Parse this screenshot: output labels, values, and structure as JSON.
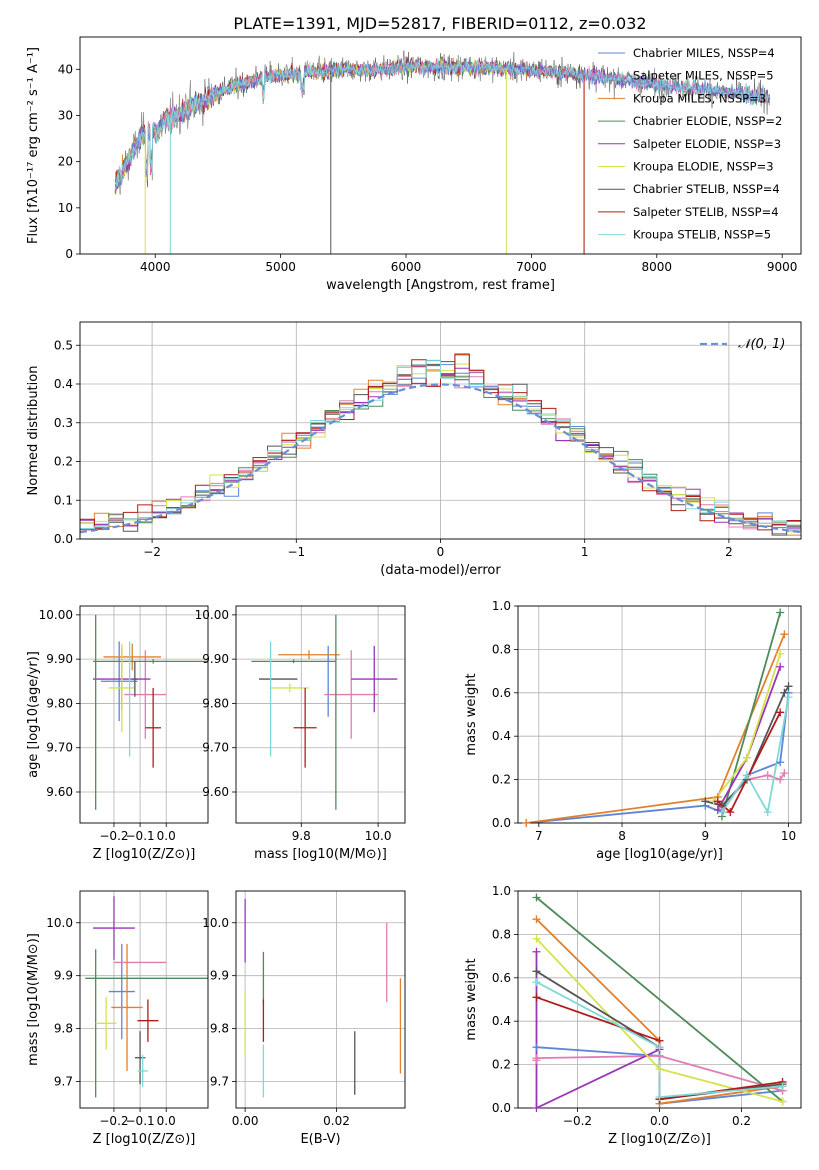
{
  "figure_title": "PLATE=1391, MJD=52817, FIBERID=0112, z=0.032",
  "colors": {
    "Chabrier MILES": "#5f84d8",
    "Salpeter MILES": "#e27cb4",
    "Kroupa MILES": "#e2812d",
    "Chabrier ELODIE": "#4e8b5a",
    "Salpeter ELODIE": "#9a35b8",
    "Kroupa ELODIE": "#d6e24e",
    "Chabrier STELIB": "#555555",
    "Salpeter STELIB": "#b01c1c",
    "Kroupa STELIB": "#7fd8d8",
    "normal": "#6a8fd8"
  },
  "chart_data": [
    {
      "id": "spectrum",
      "type": "line",
      "xlabel": "wavelength [Angstrom, rest frame]",
      "ylabel": "Flux [fλ10⁻¹⁷ erg cm⁻² s⁻¹ A⁻¹]",
      "xlim": [
        3400,
        9150
      ],
      "ylim": [
        0,
        47
      ],
      "xticks": [
        4000,
        5000,
        6000,
        7000,
        8000,
        9000
      ],
      "yticks": [
        0,
        10,
        20,
        30,
        40
      ],
      "grid": false,
      "legend_position": "top-right",
      "legend": [
        "Chabrier MILES, NSSP=4",
        "Salpeter MILES, NSSP=5",
        "Kroupa MILES, NSSP=3",
        "Chabrier ELODIE, NSSP=2",
        "Salpeter ELODIE, NSSP=3",
        "Kroupa ELODIE, NSSP=3",
        "Chabrier STELIB, NSSP=4",
        "Salpeter STELIB, NSSP=4",
        "Kroupa STELIB, NSSP=5"
      ],
      "continuum": {
        "x": [
          3680,
          3800,
          3900,
          4000,
          4100,
          4200,
          4300,
          4500,
          4700,
          4900,
          5100,
          5300,
          5500,
          5800,
          6000,
          6300,
          6600,
          6900,
          7200,
          7500,
          7800,
          8100,
          8400,
          8700,
          8900
        ],
        "y": [
          15,
          21,
          26,
          27,
          29,
          31,
          32,
          35,
          37,
          38.5,
          39,
          39.5,
          40,
          40,
          40.5,
          40.5,
          40.5,
          40,
          39.5,
          38.5,
          37.5,
          36.5,
          35.5,
          34.5,
          34
        ]
      },
      "dropouts": [
        {
          "series": "Kroupa MILES",
          "x": 7420
        },
        {
          "series": "Salpeter STELIB",
          "x": 7420
        },
        {
          "series": "Kroupa ELODIE",
          "x": 6800
        },
        {
          "series": "Kroupa ELODIE",
          "x": 3920
        },
        {
          "series": "Chabrier STELIB",
          "x": 5400
        },
        {
          "series": "Kroupa STELIB",
          "x": 4120
        }
      ]
    },
    {
      "id": "residuals",
      "type": "histogram",
      "xlabel": "(data-model)/error",
      "ylabel": "Normed distribution",
      "xlim": [
        -2.5,
        2.5
      ],
      "ylim": [
        0,
        0.56
      ],
      "xticks": [
        -2,
        -1,
        0,
        1,
        2
      ],
      "yticks": [
        0.0,
        0.1,
        0.2,
        0.3,
        0.4,
        0.5
      ],
      "grid": true,
      "legend_position": "top-right",
      "normal_label": "𝒩(0, 1)",
      "bin_width": 0.1
    },
    {
      "id": "age_vs_z",
      "type": "errorbar",
      "xlabel": "Z [log10(Z/Z⊙)]",
      "ylabel": "age  [log10(age/yr)]",
      "xlim": [
        -0.33,
        0.16
      ],
      "ylim": [
        9.53,
        10.02
      ],
      "xticks": [
        -0.2,
        -0.1,
        0.0
      ],
      "yticks": [
        9.6,
        9.7,
        9.8,
        9.9,
        10.0
      ],
      "grid": true,
      "points": [
        {
          "series": "Chabrier MILES",
          "x": -0.18,
          "xerr": 0.07,
          "y": 9.85,
          "yerr": 0.09
        },
        {
          "series": "Salpeter MILES",
          "x": -0.08,
          "xerr": 0.08,
          "y": 9.82,
          "yerr": 0.1
        },
        {
          "series": "Kroupa MILES",
          "x": -0.13,
          "xerr": 0.11,
          "y": 9.905,
          "yerr": 0.03
        },
        {
          "series": "Chabrier ELODIE",
          "x": -0.05,
          "xerr": 0.23,
          "y": 9.895,
          "yerr": 0.005
        },
        {
          "series": "Salpeter ELODIE",
          "x": -0.17,
          "xerr": 0.11,
          "y": 9.855,
          "yerr": 0.07
        },
        {
          "series": "Kroupa ELODIE",
          "x": -0.17,
          "xerr": 0.05,
          "y": 9.835,
          "yerr": 0.1
        },
        {
          "series": "Chabrier STELIB",
          "x": -0.12,
          "xerr": 0.01,
          "y": 9.855,
          "yerr": 0.04
        },
        {
          "series": "Salpeter STELIB",
          "x": -0.05,
          "xerr": 0.03,
          "y": 9.745,
          "yerr": 0.09
        },
        {
          "series": "Kroupa STELIB",
          "x": -0.14,
          "xerr": 0.0,
          "y": 9.81,
          "yerr": 0.13
        },
        {
          "series": "Chabrier ELODIE",
          "x": -0.27,
          "xerr": 0.0,
          "y": 9.78,
          "yerr": 0.22
        }
      ]
    },
    {
      "id": "age_vs_mass",
      "type": "errorbar",
      "xlabel": "mass [log10(M/M⊙)]",
      "ylabel": "",
      "xlim": [
        9.63,
        10.07
      ],
      "ylim": [
        9.53,
        10.02
      ],
      "xticks": [
        9.8,
        10.0
      ],
      "yticks": [
        9.6,
        9.7,
        9.8,
        9.9,
        10.0
      ],
      "grid": true,
      "points": [
        {
          "series": "Chabrier MILES",
          "x": 9.87,
          "xerr": 0.0,
          "y": 9.85,
          "yerr": 0.08
        },
        {
          "series": "Salpeter MILES",
          "x": 9.93,
          "xerr": 0.07,
          "y": 9.82,
          "yerr": 0.1
        },
        {
          "series": "Kroupa MILES",
          "x": 9.82,
          "xerr": 0.08,
          "y": 9.91,
          "yerr": 0.01
        },
        {
          "series": "Chabrier ELODIE",
          "x": 9.78,
          "xerr": 0.11,
          "y": 9.895,
          "yerr": 0.004
        },
        {
          "series": "Chabrier ELODIE",
          "x": 9.89,
          "xerr": 0.0,
          "y": 9.78,
          "yerr": 0.22
        },
        {
          "series": "Salpeter ELODIE",
          "x": 9.99,
          "xerr": 0.06,
          "y": 9.855,
          "yerr": 0.075
        },
        {
          "series": "Kroupa ELODIE",
          "x": 9.77,
          "xerr": 0.05,
          "y": 9.835,
          "yerr": 0.01
        },
        {
          "series": "Chabrier STELIB",
          "x": 9.74,
          "xerr": 0.05,
          "y": 9.855,
          "yerr": 0.0
        },
        {
          "series": "Salpeter STELIB",
          "x": 9.81,
          "xerr": 0.03,
          "y": 9.745,
          "yerr": 0.09
        },
        {
          "series": "Kroupa STELIB",
          "x": 9.72,
          "xerr": 0.0,
          "y": 9.81,
          "yerr": 0.13
        }
      ]
    },
    {
      "id": "mass_weight_vs_age",
      "type": "line",
      "xlabel": "age  [log10(age/yr)]",
      "ylabel": "mass weight",
      "xlim": [
        6.75,
        10.15
      ],
      "ylim": [
        0,
        1.0
      ],
      "xticks": [
        7,
        8,
        9,
        10
      ],
      "yticks": [
        0.0,
        0.2,
        0.4,
        0.6,
        0.8,
        1.0
      ],
      "grid": true,
      "series": [
        {
          "name": "Chabrier MILES",
          "x": [
            6.85,
            9.0,
            9.2,
            9.5,
            9.9,
            10.0
          ],
          "y": [
            0.0,
            0.08,
            0.05,
            0.22,
            0.28,
            0.6
          ]
        },
        {
          "name": "Salpeter MILES",
          "x": [
            9.1,
            9.2,
            9.5,
            9.75,
            9.9,
            9.95
          ],
          "y": [
            0.1,
            0.07,
            0.2,
            0.22,
            0.2,
            0.23
          ]
        },
        {
          "name": "Kroupa MILES",
          "x": [
            6.85,
            9.15,
            9.95
          ],
          "y": [
            0.0,
            0.12,
            0.87
          ]
        },
        {
          "name": "Chabrier ELODIE",
          "x": [
            9.2,
            9.9
          ],
          "y": [
            0.03,
            0.97
          ]
        },
        {
          "name": "Salpeter ELODIE",
          "x": [
            9.15,
            9.5,
            9.9
          ],
          "y": [
            0.06,
            0.3,
            0.72
          ]
        },
        {
          "name": "Kroupa ELODIE",
          "x": [
            9.1,
            9.5,
            9.9
          ],
          "y": [
            0.1,
            0.3,
            0.78
          ]
        },
        {
          "name": "Chabrier STELIB",
          "x": [
            9.0,
            9.2,
            9.5,
            9.95,
            10.0
          ],
          "y": [
            0.1,
            0.08,
            0.2,
            0.6,
            0.63
          ]
        },
        {
          "name": "Salpeter STELIB",
          "x": [
            9.15,
            9.3,
            9.9
          ],
          "y": [
            0.1,
            0.05,
            0.51
          ]
        },
        {
          "name": "Kroupa STELIB",
          "x": [
            9.2,
            9.5,
            9.75,
            10.0
          ],
          "y": [
            0.05,
            0.22,
            0.05,
            0.58
          ]
        }
      ]
    },
    {
      "id": "mass_vs_z",
      "type": "errorbar",
      "xlabel": "Z [log10(Z/Z⊙)]",
      "ylabel": "mass [log10(M/M⊙)]",
      "xlim": [
        -0.33,
        0.16
      ],
      "ylim": [
        9.65,
        10.06
      ],
      "xticks": [
        -0.2,
        -0.1,
        0.0
      ],
      "yticks": [
        9.7,
        9.8,
        9.9,
        10.0
      ],
      "grid": true,
      "points": [
        {
          "series": "Chabrier MILES",
          "x": -0.17,
          "xerr": 0.05,
          "y": 9.87,
          "yerr": 0.09
        },
        {
          "series": "Salpeter MILES",
          "x": -0.1,
          "xerr": 0.1,
          "y": 9.925,
          "yerr": 0.0
        },
        {
          "series": "Kroupa MILES",
          "x": -0.15,
          "xerr": 0.06,
          "y": 9.84,
          "yerr": 0.12
        },
        {
          "series": "Chabrier ELODIE",
          "x": -0.07,
          "xerr": 0.24,
          "y": 9.895,
          "yerr": 0.0
        },
        {
          "series": "Chabrier ELODIE",
          "x": -0.27,
          "xerr": 0.0,
          "y": 9.81,
          "yerr": 0.14
        },
        {
          "series": "Salpeter ELODIE",
          "x": -0.2,
          "xerr": 0.08,
          "y": 9.99,
          "yerr": 0.06
        },
        {
          "series": "Kroupa ELODIE",
          "x": -0.23,
          "xerr": 0.04,
          "y": 9.81,
          "yerr": 0.05
        },
        {
          "series": "Chabrier STELIB",
          "x": -0.1,
          "xerr": 0.02,
          "y": 9.745,
          "yerr": 0.05
        },
        {
          "series": "Salpeter STELIB",
          "x": -0.07,
          "xerr": 0.04,
          "y": 9.815,
          "yerr": 0.04
        },
        {
          "series": "Kroupa STELIB",
          "x": -0.09,
          "xerr": 0.02,
          "y": 9.72,
          "yerr": 0.03
        }
      ]
    },
    {
      "id": "mass_vs_ebv",
      "type": "errorbar",
      "xlabel": "E(B-V)",
      "ylabel": "",
      "xlim": [
        -0.002,
        0.035
      ],
      "ylim": [
        9.65,
        10.06
      ],
      "xticks": [
        0.0,
        0.02
      ],
      "yticks": [
        9.7,
        9.8,
        9.9,
        10.0
      ],
      "grid": true,
      "points": [
        {
          "series": "Salpeter ELODIE",
          "x": 0.0,
          "xerr": 0.0,
          "y": 9.985,
          "yerr": 0.06
        },
        {
          "series": "Kroupa ELODIE",
          "x": 0.0,
          "xerr": 0.0,
          "y": 9.81,
          "yerr": 0.06
        },
        {
          "series": "Chabrier ELODIE",
          "x": 0.004,
          "xerr": 0.0,
          "y": 9.895,
          "yerr": 0.05
        },
        {
          "series": "Salpeter STELIB",
          "x": 0.004,
          "xerr": 0.0,
          "y": 9.815,
          "yerr": 0.04
        },
        {
          "series": "Kroupa STELIB",
          "x": 0.004,
          "xerr": 0.0,
          "y": 9.72,
          "yerr": 0.05
        },
        {
          "series": "Chabrier STELIB",
          "x": 0.024,
          "xerr": 0.0,
          "y": 9.735,
          "yerr": 0.06
        },
        {
          "series": "Salpeter MILES",
          "x": 0.031,
          "xerr": 0.0,
          "y": 9.925,
          "yerr": 0.075
        },
        {
          "series": "Kroupa MILES",
          "x": 0.034,
          "xerr": 0.0,
          "y": 9.805,
          "yerr": 0.09
        }
      ]
    },
    {
      "id": "mass_weight_vs_z",
      "type": "line",
      "xlabel": "Z [log10(Z/Z⊙)]",
      "ylabel": "mass weight",
      "xlim": [
        -0.345,
        0.345
      ],
      "ylim": [
        0,
        1.0
      ],
      "xticks": [
        -0.2,
        0.0,
        0.2
      ],
      "yticks": [
        0.0,
        0.2,
        0.4,
        0.6,
        0.8,
        1.0
      ],
      "grid": true,
      "series": [
        {
          "name": "Chabrier MILES",
          "x": [
            -0.3,
            0.0,
            0.0,
            0.3
          ],
          "y": [
            0.28,
            0.24,
            0.02,
            0.08
          ]
        },
        {
          "name": "Salpeter MILES",
          "x": [
            -0.3,
            -0.3,
            0.0,
            0.3
          ],
          "y": [
            0.22,
            0.23,
            0.24,
            0.08
          ]
        },
        {
          "name": "Kroupa MILES",
          "x": [
            -0.3,
            0.0,
            0.0,
            0.3
          ],
          "y": [
            0.87,
            0.31,
            0.02,
            0.1
          ]
        },
        {
          "name": "Chabrier ELODIE",
          "x": [
            -0.3,
            0.3
          ],
          "y": [
            0.97,
            0.03
          ]
        },
        {
          "name": "Salpeter ELODIE",
          "x": [
            -0.3,
            -0.3,
            0.0
          ],
          "y": [
            0.72,
            0.0,
            0.27
          ]
        },
        {
          "name": "Kroupa ELODIE",
          "x": [
            -0.3,
            0.0,
            0.3
          ],
          "y": [
            0.78,
            0.18,
            0.03
          ]
        },
        {
          "name": "Chabrier STELIB",
          "x": [
            -0.3,
            0.0,
            0.0,
            0.3
          ],
          "y": [
            0.63,
            0.28,
            0.04,
            0.11
          ]
        },
        {
          "name": "Salpeter STELIB",
          "x": [
            -0.3,
            0.0,
            0.0,
            0.3
          ],
          "y": [
            0.51,
            0.31,
            0.04,
            0.12
          ]
        },
        {
          "name": "Kroupa STELIB",
          "x": [
            -0.3,
            0.0,
            0.0,
            0.3
          ],
          "y": [
            0.58,
            0.28,
            0.05,
            0.1
          ]
        }
      ]
    }
  ]
}
